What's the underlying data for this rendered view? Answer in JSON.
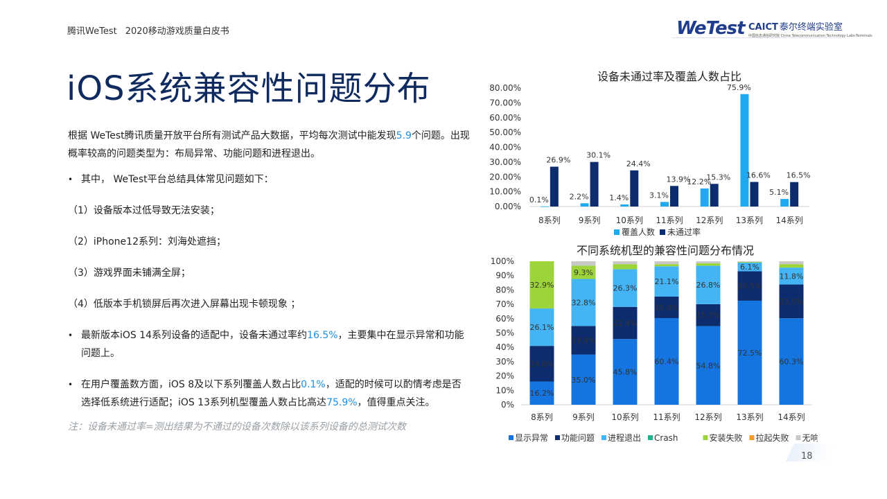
{
  "header": {
    "left_brand": "腾讯WeTest",
    "left_title": "2020移动游戏质量白皮书",
    "logo_wetest": "WeTest",
    "logo_caict": "CAICT",
    "logo_caict_cn": "泰尔终端实验室",
    "logo_caict_sub": "中国信息通信研究院 China Telecommunication Technology Labs-Terminals"
  },
  "title": "iOS系统兼容性问题分布",
  "body": {
    "intro_a": "根据 WeTest腾讯质量开放平台所有测试产品大数据，平均每次测试中能发现",
    "intro_num": "5.9",
    "intro_b": "个问题。出现概率较高的问题类型为：布局异常、功能问题和进程退出。",
    "bullet1": "其中， WeTest平台总结具体常见问题如下：",
    "items": [
      "（1）设备版本过低导致无法安装；",
      "（2）iPhone12系列：刘海处遮挡；",
      "（3）游戏界面未铺满全屏；",
      "（4）低版本手机锁屏后再次进入屏幕出现卡顿现象 ；"
    ],
    "bullet2_a": "最新版本iOS 14系列设备的适配中，设备未通过率约",
    "bullet2_num": "16.5%",
    "bullet2_b": "，主要集中在显示异常和功能问题上。",
    "bullet3_a": "在用户覆盖数方面，iOS 8及以下系列覆盖人数占比",
    "bullet3_num1": "0.1%",
    "bullet3_b": "，适配的时候可以酌情考虑是否选择低系统进行适配；iOS 13系列机型覆盖人数占比高达",
    "bullet3_num2": "75.9%",
    "bullet3_c": "，值得重点关注。",
    "note": "注：设备未通过率=测出结果为不通过的设备次数除以该系列设备的总测试次数"
  },
  "page_number": "18",
  "colors": {
    "light_blue": "#1eaaf1",
    "dark_navy": "#0d2c6e",
    "display": "#1474e0",
    "function": "#0d2c6e",
    "process": "#44b4f4",
    "crash": "#1fb38c",
    "install": "#9dd43a",
    "launch": "#f59a23",
    "noresponse": "#c8c8c8"
  },
  "chart_data": [
    {
      "type": "bar",
      "title": "设备未通过率及覆盖人数占比",
      "categories": [
        "8系列",
        "9系列",
        "10系列",
        "11系列",
        "12系列",
        "13系列",
        "14系列"
      ],
      "ylim": [
        0,
        80
      ],
      "yticks": [
        "0.00%",
        "10.00%",
        "20.00%",
        "30.00%",
        "40.00%",
        "50.00%",
        "60.00%",
        "70.00%",
        "80.00%"
      ],
      "series": [
        {
          "name": "覆盖人数",
          "values": [
            0.1,
            2.2,
            1.4,
            3.1,
            12.2,
            75.9,
            5.1
          ],
          "labels": [
            "0.1%",
            "2.2%",
            "1.4%",
            "3.1%",
            "12.2%",
            "75.9%",
            "5.1%"
          ]
        },
        {
          "name": "未通过率",
          "values": [
            26.9,
            30.1,
            24.4,
            13.9,
            15.3,
            16.6,
            16.5
          ],
          "labels": [
            "26.9%",
            "30.1%",
            "24.4%",
            "13.9%",
            "15.3%",
            "16.6%",
            "16.5%"
          ]
        }
      ],
      "legend": "bottom"
    },
    {
      "type": "bar",
      "stacked": true,
      "title": "不同系统机型的兼容性问题分布情况",
      "categories": [
        "8系列",
        "9系列",
        "10系列",
        "11系列",
        "12系列",
        "13系列",
        "14系列"
      ],
      "ylim": [
        0,
        100
      ],
      "yticks": [
        "0%",
        "10%",
        "20%",
        "30%",
        "40%",
        "50%",
        "60%",
        "70%",
        "80%",
        "90%",
        "100%"
      ],
      "series": [
        {
          "name": "显示异常",
          "values": [
            16.2,
            35.0,
            45.8,
            60.4,
            54.8,
            72.5,
            60.3
          ],
          "labels": [
            "16.2%",
            "35.0%",
            "45.8%",
            "60.4%",
            "54.8%",
            "72.5%",
            "60.3%"
          ]
        },
        {
          "name": "功能问题",
          "values": [
            24.8,
            19.9,
            22.4,
            15.0,
            15.3,
            20.5,
            23.5
          ],
          "labels": [
            "24.8%",
            "19.9%",
            "22.4%",
            "15.0%",
            "15.3%",
            "20.5%",
            "23.5%"
          ]
        },
        {
          "name": "进程退出",
          "values": [
            26.1,
            32.8,
            26.3,
            21.1,
            26.8,
            6.1,
            11.8
          ],
          "labels": [
            "26.1%",
            "32.8%",
            "26.3%",
            "21.1%",
            "26.8%",
            "6.1%",
            "11.8%"
          ]
        },
        {
          "name": "Crash",
          "values": [
            0,
            0,
            0,
            0,
            0,
            0,
            0
          ],
          "labels": [
            "",
            "",
            "",
            "",
            "",
            "",
            ""
          ]
        },
        {
          "name": "安装失败",
          "values": [
            32.9,
            9.3,
            3.5,
            1.5,
            1.7,
            0.5,
            2.4
          ],
          "labels": [
            "32.9%",
            "9.3%",
            "",
            "",
            "",
            "",
            ""
          ]
        },
        {
          "name": "拉起失败",
          "values": [
            0,
            0,
            0,
            0,
            0,
            0,
            0
          ],
          "labels": [
            "",
            "",
            "",
            "",
            "",
            "",
            ""
          ]
        },
        {
          "name": "无响应",
          "values": [
            0,
            3.0,
            2.0,
            2.0,
            1.4,
            0.4,
            2.0
          ],
          "labels": [
            "",
            "",
            "",
            "",
            "",
            "",
            ""
          ]
        }
      ],
      "legend": "bottom"
    }
  ]
}
